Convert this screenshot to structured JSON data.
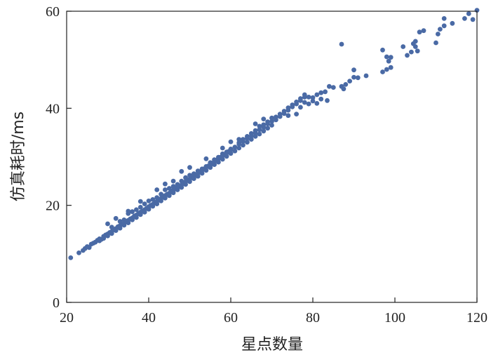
{
  "chart_data": {
    "type": "scatter",
    "title": "",
    "xlabel": "星点数量",
    "ylabel": "仿真耗时/ms",
    "xlim": [
      20,
      120
    ],
    "ylim": [
      0,
      60
    ],
    "xticks": [
      20,
      40,
      60,
      80,
      100,
      120
    ],
    "yticks": [
      0,
      20,
      40,
      60
    ],
    "xtick_labels": [
      "20",
      "40",
      "60",
      "80",
      "100",
      "120"
    ],
    "ytick_labels": [
      "0",
      "20",
      "40",
      "60"
    ],
    "grid": false,
    "legend": "none",
    "marker_color": "#4a6aa5",
    "series": [
      {
        "points": [
          [
            21,
            9.2
          ],
          [
            23,
            10.2
          ],
          [
            24,
            10.7
          ],
          [
            24.5,
            11.1
          ],
          [
            25,
            11.5
          ],
          [
            25.5,
            11.3
          ],
          [
            26,
            12.0
          ],
          [
            26.5,
            12.2
          ],
          [
            27,
            12.4
          ],
          [
            27.5,
            12.8
          ],
          [
            28,
            13.1
          ],
          [
            28.5,
            13.0
          ],
          [
            29,
            13.6
          ],
          [
            29.5,
            13.9
          ],
          [
            30,
            14.1
          ],
          [
            30.5,
            14.4
          ],
          [
            31,
            14.6
          ],
          [
            31.5,
            15.0
          ],
          [
            32,
            15.2
          ],
          [
            32.5,
            15.6
          ],
          [
            33,
            15.8
          ],
          [
            33.5,
            16.1
          ],
          [
            34,
            16.3
          ],
          [
            34.5,
            16.7
          ],
          [
            35,
            16.9
          ],
          [
            35.5,
            17.2
          ],
          [
            36,
            17.4
          ],
          [
            36.5,
            17.8
          ],
          [
            37,
            18.0
          ],
          [
            37.5,
            18.3
          ],
          [
            38,
            18.6
          ],
          [
            38.5,
            18.8
          ],
          [
            39,
            19.1
          ],
          [
            39.5,
            19.4
          ],
          [
            40,
            19.7
          ],
          [
            40.5,
            20.0
          ],
          [
            41,
            20.2
          ],
          [
            41.5,
            20.6
          ],
          [
            42,
            20.8
          ],
          [
            42.5,
            21.1
          ],
          [
            43,
            21.4
          ],
          [
            43.5,
            21.7
          ],
          [
            44,
            22.0
          ],
          [
            44.5,
            22.3
          ],
          [
            45,
            22.5
          ],
          [
            45.5,
            22.8
          ],
          [
            46,
            23.1
          ],
          [
            46.5,
            23.4
          ],
          [
            47,
            23.7
          ],
          [
            47.5,
            24.0
          ],
          [
            48,
            24.2
          ],
          [
            48.5,
            24.6
          ],
          [
            49,
            24.9
          ],
          [
            49.5,
            25.1
          ],
          [
            50,
            25.4
          ],
          [
            50.5,
            25.7
          ],
          [
            51,
            26.0
          ],
          [
            51.5,
            26.3
          ],
          [
            52,
            26.6
          ],
          [
            52.5,
            26.9
          ],
          [
            53,
            27.2
          ],
          [
            53.5,
            27.5
          ],
          [
            54,
            27.8
          ],
          [
            54.5,
            28.1
          ],
          [
            55,
            28.3
          ],
          [
            55.5,
            28.7
          ],
          [
            56,
            29.0
          ],
          [
            56.5,
            29.3
          ],
          [
            57,
            29.6
          ],
          [
            57.5,
            29.9
          ],
          [
            58,
            30.2
          ],
          [
            58.5,
            30.5
          ],
          [
            59,
            30.8
          ],
          [
            59.5,
            31.1
          ],
          [
            60,
            31.4
          ],
          [
            61,
            32.0
          ],
          [
            62,
            32.6
          ],
          [
            63,
            33.2
          ],
          [
            64,
            33.8
          ],
          [
            65,
            34.3
          ],
          [
            66,
            34.9
          ],
          [
            67,
            35.6
          ],
          [
            68,
            36.1
          ],
          [
            69,
            36.8
          ],
          [
            70,
            37.3
          ],
          [
            28,
            12.7
          ],
          [
            29,
            13.2
          ],
          [
            30,
            13.7
          ],
          [
            31,
            14.2
          ],
          [
            32,
            14.8
          ],
          [
            33,
            15.3
          ],
          [
            34,
            15.9
          ],
          [
            35,
            16.4
          ],
          [
            36,
            17.0
          ],
          [
            37,
            17.5
          ],
          [
            38,
            18.1
          ],
          [
            39,
            18.6
          ],
          [
            40,
            19.2
          ],
          [
            41,
            19.8
          ],
          [
            42,
            20.3
          ],
          [
            43,
            20.9
          ],
          [
            44,
            21.5
          ],
          [
            45,
            22.0
          ],
          [
            46,
            22.6
          ],
          [
            47,
            23.2
          ],
          [
            48,
            23.7
          ],
          [
            49,
            24.3
          ],
          [
            50,
            24.9
          ],
          [
            51,
            25.5
          ],
          [
            52,
            26.0
          ],
          [
            53,
            26.6
          ],
          [
            54,
            27.2
          ],
          [
            55,
            27.8
          ],
          [
            56,
            28.4
          ],
          [
            57,
            28.9
          ],
          [
            58,
            29.5
          ],
          [
            59,
            30.1
          ],
          [
            60,
            30.7
          ],
          [
            61,
            31.2
          ],
          [
            62,
            31.8
          ],
          [
            63,
            32.4
          ],
          [
            64,
            33.0
          ],
          [
            65,
            33.6
          ],
          [
            66,
            34.2
          ],
          [
            67,
            34.7
          ],
          [
            68,
            35.3
          ],
          [
            69,
            35.9
          ],
          [
            70,
            36.5
          ],
          [
            30,
            16.2
          ],
          [
            31,
            15.5
          ],
          [
            33,
            16.7
          ],
          [
            34,
            17.0
          ],
          [
            35,
            18.3
          ],
          [
            36,
            18.7
          ],
          [
            37,
            19.1
          ],
          [
            38,
            19.6
          ],
          [
            39,
            20.3
          ],
          [
            40,
            20.9
          ],
          [
            41,
            21.2
          ],
          [
            42,
            21.6
          ],
          [
            43,
            22.3
          ],
          [
            44,
            23.2
          ],
          [
            45,
            23.5
          ],
          [
            46,
            23.9
          ],
          [
            47,
            24.3
          ],
          [
            48,
            25.0
          ],
          [
            49,
            25.7
          ],
          [
            50,
            26.2
          ],
          [
            51,
            26.5
          ],
          [
            52,
            27.1
          ],
          [
            53,
            27.5
          ],
          [
            54,
            28.0
          ],
          [
            55,
            28.8
          ],
          [
            56,
            29.4
          ],
          [
            57,
            29.9
          ],
          [
            58,
            30.6
          ],
          [
            59,
            31.0
          ],
          [
            60,
            31.6
          ],
          [
            62,
            32.9
          ],
          [
            63,
            33.6
          ],
          [
            64,
            34.2
          ],
          [
            65,
            34.8
          ],
          [
            66,
            35.4
          ],
          [
            67,
            36.3
          ],
          [
            68,
            36.6
          ],
          [
            69,
            37.2
          ],
          [
            70,
            38.0
          ],
          [
            71,
            37.6
          ],
          [
            72,
            38.3
          ],
          [
            73,
            38.9
          ],
          [
            74,
            39.6
          ],
          [
            75,
            40.3
          ],
          [
            76,
            40.9
          ],
          [
            77,
            41.6
          ],
          [
            78,
            42.3
          ],
          [
            71,
            38.2
          ],
          [
            72,
            38.8
          ],
          [
            73,
            39.4
          ],
          [
            74,
            40.1
          ],
          [
            75,
            40.7
          ],
          [
            76,
            41.3
          ],
          [
            77,
            42.0
          ],
          [
            78,
            42.8
          ],
          [
            74,
            38.5
          ],
          [
            76,
            38.8
          ],
          [
            77,
            40.2
          ],
          [
            78,
            41.2
          ],
          [
            79,
            40.9
          ],
          [
            80,
            42.2
          ],
          [
            81,
            42.8
          ],
          [
            82,
            43.2
          ],
          [
            79,
            42.3
          ],
          [
            80,
            41.5
          ],
          [
            81,
            41.0
          ],
          [
            82,
            41.9
          ],
          [
            83,
            43.4
          ],
          [
            83.5,
            41.6
          ],
          [
            84,
            44.5
          ],
          [
            85,
            44.3
          ],
          [
            62,
            33.6
          ],
          [
            54,
            29.6
          ],
          [
            50,
            27.8
          ],
          [
            48,
            27.0
          ],
          [
            44,
            24.4
          ],
          [
            46,
            25.0
          ],
          [
            42,
            23.2
          ],
          [
            38,
            20.8
          ],
          [
            35,
            18.8
          ],
          [
            32,
            17.3
          ],
          [
            66,
            36.8
          ],
          [
            68,
            37.8
          ],
          [
            60,
            33.1
          ],
          [
            58,
            31.8
          ],
          [
            87,
            44.5
          ],
          [
            87.5,
            44.0
          ],
          [
            88,
            44.9
          ],
          [
            89,
            45.6
          ],
          [
            90,
            46.4
          ],
          [
            91,
            46.3
          ],
          [
            93,
            46.7
          ],
          [
            87,
            53.2
          ],
          [
            97,
            47.5
          ],
          [
            98,
            48.0
          ],
          [
            98.5,
            49.7
          ],
          [
            99,
            48.4
          ],
          [
            97,
            52.0
          ],
          [
            98,
            50.6
          ],
          [
            99,
            50.5
          ],
          [
            90,
            47.9
          ],
          [
            103,
            50.9
          ],
          [
            104,
            51.6
          ],
          [
            104.5,
            53.3
          ],
          [
            105,
            52.7
          ],
          [
            105.5,
            51.8
          ],
          [
            106,
            55.7
          ],
          [
            107,
            56.0
          ],
          [
            110,
            53.5
          ],
          [
            110.5,
            55.3
          ],
          [
            111,
            56.3
          ],
          [
            112,
            57.0
          ],
          [
            112,
            58.5
          ],
          [
            114,
            57.5
          ],
          [
            117,
            58.5
          ],
          [
            118,
            59.5
          ],
          [
            119,
            58.3
          ],
          [
            120,
            60.2
          ],
          [
            105,
            53.8
          ],
          [
            102,
            52.7
          ]
        ]
      }
    ]
  }
}
